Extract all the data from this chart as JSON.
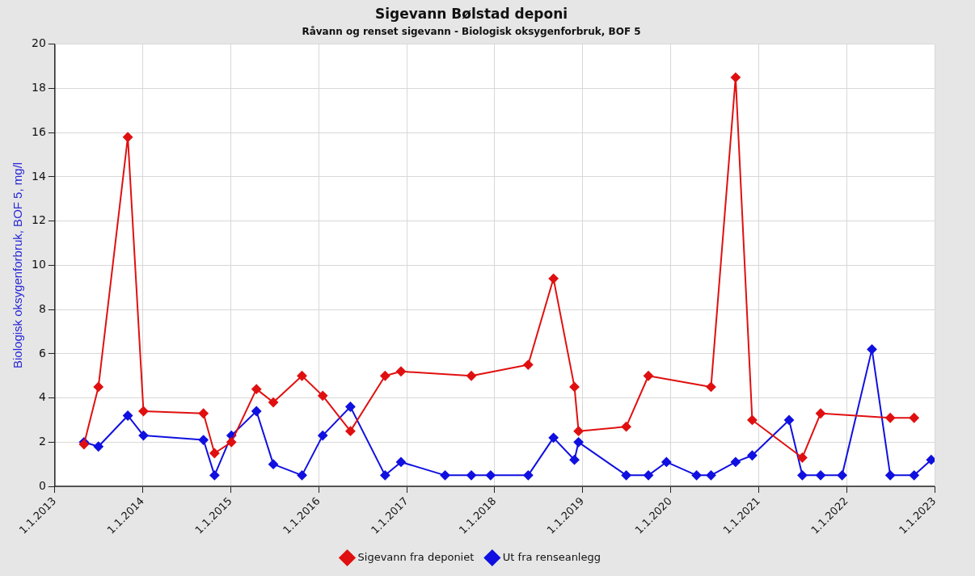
{
  "chart_data": {
    "type": "line",
    "title": "Sigevann Bølstad deponi",
    "subtitle": "Råvann og renset sigevann - Biologisk oksygenforbruk, BOF 5",
    "ylabel": "Biologisk oksygenforbruk, BOF 5, mg/l",
    "xlim": [
      "2013-01-01",
      "2023-01-01"
    ],
    "xticks": [
      {
        "value": "2013-01-01",
        "label": "1.1.2013"
      },
      {
        "value": "2014-01-01",
        "label": "1.1.2014"
      },
      {
        "value": "2015-01-01",
        "label": "1.1.2015"
      },
      {
        "value": "2016-01-01",
        "label": "1.1.2016"
      },
      {
        "value": "2017-01-01",
        "label": "1.1.2017"
      },
      {
        "value": "2018-01-01",
        "label": "1.1.2018"
      },
      {
        "value": "2019-01-01",
        "label": "1.1.2019"
      },
      {
        "value": "2020-01-01",
        "label": "1.1.2020"
      },
      {
        "value": "2021-01-01",
        "label": "1.1.2021"
      },
      {
        "value": "2022-01-01",
        "label": "1.1.2022"
      },
      {
        "value": "2023-01-01",
        "label": "1.1.2023"
      }
    ],
    "ylim": [
      0,
      20
    ],
    "yticks": [
      0,
      2,
      4,
      6,
      8,
      10,
      12,
      14,
      16,
      18,
      20
    ],
    "grid": true,
    "legend": "bottom",
    "marker": "diamond",
    "line_style": "solid",
    "series": [
      {
        "name": "Sigevann fra deponiet",
        "color": "#e01010",
        "x": [
          "2013-05-02",
          "2013-07-01",
          "2013-10-31",
          "2014-01-04",
          "2014-09-10",
          "2014-10-26",
          "2015-01-04",
          "2015-04-18",
          "2015-06-27",
          "2015-10-24",
          "2016-01-18",
          "2016-05-12",
          "2016-10-03",
          "2016-12-08",
          "2017-09-26",
          "2018-05-20",
          "2018-09-02",
          "2018-11-28",
          "2018-12-15",
          "2019-07-01",
          "2019-10-01",
          "2020-06-17",
          "2020-09-27",
          "2020-12-05",
          "2021-07-01",
          "2021-09-15",
          "2022-07-01",
          "2022-10-08"
        ],
        "values": [
          1.9,
          4.5,
          15.8,
          3.4,
          3.3,
          1.5,
          2.0,
          4.4,
          3.8,
          5.0,
          4.1,
          2.5,
          5.0,
          5.2,
          5.0,
          5.5,
          9.4,
          4.5,
          2.5,
          2.7,
          5.0,
          4.5,
          18.5,
          3.0,
          1.3,
          3.3,
          3.1,
          3.1
        ]
      },
      {
        "name": "Ut fra renseanlegg",
        "color": "#1010e0",
        "x": [
          "2013-05-02",
          "2013-07-01",
          "2013-10-31",
          "2014-01-04",
          "2014-09-10",
          "2014-10-26",
          "2015-01-04",
          "2015-04-18",
          "2015-06-27",
          "2015-10-24",
          "2016-01-18",
          "2016-05-12",
          "2016-10-03",
          "2016-12-08",
          "2017-06-09",
          "2017-09-26",
          "2017-12-15",
          "2018-05-20",
          "2018-09-02",
          "2018-11-28",
          "2018-12-15",
          "2019-07-01",
          "2019-10-01",
          "2019-12-15",
          "2020-04-18",
          "2020-06-17",
          "2020-09-27",
          "2020-12-05",
          "2021-05-07",
          "2021-07-01",
          "2021-09-15",
          "2021-12-13",
          "2022-04-16",
          "2022-07-01",
          "2022-10-08",
          "2022-12-18"
        ],
        "values": [
          2.0,
          1.8,
          3.2,
          2.3,
          2.1,
          0.5,
          2.3,
          3.4,
          1.0,
          0.5,
          2.3,
          3.6,
          0.5,
          1.1,
          0.5,
          0.5,
          0.5,
          0.5,
          2.2,
          1.2,
          2.0,
          0.5,
          0.5,
          1.1,
          0.5,
          0.5,
          1.1,
          1.4,
          3.0,
          0.5,
          0.5,
          0.5,
          6.2,
          0.5,
          0.5,
          1.2
        ]
      }
    ]
  }
}
